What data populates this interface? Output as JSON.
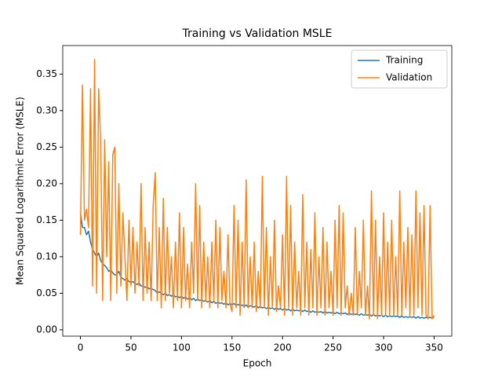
{
  "chart_data": {
    "type": "line",
    "title": "Training vs Validation MSLE",
    "x_label": "Epoch",
    "y_label": "Mean Squared Logarithmic Error (MSLE)",
    "x": [
      0,
      2,
      4,
      6,
      8,
      10,
      12,
      14,
      16,
      18,
      20,
      22,
      24,
      26,
      28,
      30,
      32,
      34,
      36,
      38,
      40,
      42,
      44,
      46,
      48,
      50,
      52,
      54,
      56,
      58,
      60,
      62,
      64,
      66,
      68,
      70,
      72,
      74,
      76,
      78,
      80,
      82,
      84,
      86,
      88,
      90,
      92,
      94,
      96,
      98,
      100,
      102,
      104,
      106,
      108,
      110,
      112,
      114,
      116,
      118,
      120,
      122,
      124,
      126,
      128,
      130,
      132,
      134,
      136,
      138,
      140,
      142,
      144,
      146,
      148,
      150,
      152,
      154,
      156,
      158,
      160,
      162,
      164,
      166,
      168,
      170,
      172,
      174,
      176,
      178,
      180,
      182,
      184,
      186,
      188,
      190,
      192,
      194,
      196,
      198,
      200,
      202,
      204,
      206,
      208,
      210,
      212,
      214,
      216,
      218,
      220,
      222,
      224,
      226,
      228,
      230,
      232,
      234,
      236,
      238,
      240,
      242,
      244,
      246,
      248,
      250,
      252,
      254,
      256,
      258,
      260,
      262,
      264,
      266,
      268,
      270,
      272,
      274,
      276,
      278,
      280,
      282,
      284,
      286,
      288,
      290,
      292,
      294,
      296,
      298,
      300,
      302,
      304,
      306,
      308,
      310,
      312,
      314,
      316,
      318,
      320,
      322,
      324,
      326,
      328,
      330,
      332,
      334,
      336,
      338,
      340,
      342,
      344,
      346,
      348,
      350
    ],
    "series": [
      {
        "name": "Training",
        "color": "#1f77b4",
        "values": [
          0.16,
          0.14,
          0.14,
          0.13,
          0.135,
          0.12,
          0.11,
          0.105,
          0.1,
          0.105,
          0.095,
          0.09,
          0.088,
          0.085,
          0.08,
          0.082,
          0.078,
          0.075,
          0.076,
          0.08,
          0.072,
          0.07,
          0.068,
          0.07,
          0.066,
          0.065,
          0.066,
          0.063,
          0.062,
          0.064,
          0.06,
          0.06,
          0.058,
          0.059,
          0.056,
          0.057,
          0.055,
          0.054,
          0.05,
          0.052,
          0.05,
          0.048,
          0.05,
          0.047,
          0.048,
          0.046,
          0.048,
          0.045,
          0.046,
          0.044,
          0.046,
          0.043,
          0.045,
          0.042,
          0.044,
          0.041,
          0.043,
          0.04,
          0.042,
          0.04,
          0.041,
          0.039,
          0.04,
          0.038,
          0.04,
          0.037,
          0.039,
          0.036,
          0.038,
          0.036,
          0.037,
          0.035,
          0.037,
          0.034,
          0.036,
          0.034,
          0.036,
          0.033,
          0.035,
          0.033,
          0.034,
          0.032,
          0.034,
          0.031,
          0.033,
          0.032,
          0.031,
          0.033,
          0.03,
          0.032,
          0.03,
          0.031,
          0.029,
          0.031,
          0.029,
          0.03,
          0.028,
          0.03,
          0.028,
          0.029,
          0.027,
          0.029,
          0.027,
          0.028,
          0.026,
          0.028,
          0.026,
          0.027,
          0.026,
          0.027,
          0.025,
          0.027,
          0.025,
          0.026,
          0.024,
          0.026,
          0.024,
          0.025,
          0.024,
          0.025,
          0.023,
          0.025,
          0.023,
          0.024,
          0.023,
          0.024,
          0.022,
          0.024,
          0.022,
          0.023,
          0.022,
          0.023,
          0.021,
          0.023,
          0.021,
          0.022,
          0.021,
          0.022,
          0.02,
          0.022,
          0.02,
          0.021,
          0.02,
          0.021,
          0.019,
          0.021,
          0.019,
          0.02,
          0.019,
          0.02,
          0.018,
          0.02,
          0.018,
          0.019,
          0.018,
          0.019,
          0.018,
          0.019,
          0.017,
          0.019,
          0.017,
          0.018,
          0.017,
          0.018,
          0.017,
          0.018,
          0.016,
          0.018,
          0.016,
          0.017,
          0.016,
          0.017,
          0.016,
          0.017,
          0.016,
          0.017
        ]
      },
      {
        "name": "Validation",
        "color": "#ff7f0e",
        "values": [
          0.13,
          0.335,
          0.15,
          0.165,
          0.14,
          0.33,
          0.06,
          0.37,
          0.05,
          0.33,
          0.26,
          0.04,
          0.26,
          0.1,
          0.23,
          0.04,
          0.24,
          0.25,
          0.05,
          0.2,
          0.06,
          0.16,
          0.1,
          0.04,
          0.15,
          0.06,
          0.14,
          0.05,
          0.12,
          0.06,
          0.2,
          0.04,
          0.14,
          0.05,
          0.12,
          0.04,
          0.17,
          0.215,
          0.04,
          0.14,
          0.03,
          0.18,
          0.04,
          0.14,
          0.05,
          0.1,
          0.03,
          0.12,
          0.04,
          0.16,
          0.03,
          0.14,
          0.04,
          0.09,
          0.03,
          0.12,
          0.05,
          0.2,
          0.04,
          0.17,
          0.03,
          0.12,
          0.04,
          0.1,
          0.03,
          0.12,
          0.04,
          0.15,
          0.03,
          0.14,
          0.04,
          0.08,
          0.03,
          0.13,
          0.035,
          0.025,
          0.17,
          0.03,
          0.15,
          0.02,
          0.12,
          0.03,
          0.205,
          0.03,
          0.1,
          0.03,
          0.12,
          0.025,
          0.08,
          0.03,
          0.21,
          0.03,
          0.14,
          0.02,
          0.1,
          0.03,
          0.15,
          0.025,
          0.06,
          0.03,
          0.13,
          0.02,
          0.21,
          0.03,
          0.17,
          0.02,
          0.12,
          0.03,
          0.08,
          0.02,
          0.185,
          0.03,
          0.12,
          0.02,
          0.11,
          0.03,
          0.16,
          0.02,
          0.1,
          0.03,
          0.14,
          0.02,
          0.12,
          0.03,
          0.08,
          0.02,
          0.15,
          0.03,
          0.17,
          0.02,
          0.16,
          0.03,
          0.06,
          0.02,
          0.05,
          0.02,
          0.14,
          0.02,
          0.08,
          0.03,
          0.15,
          0.02,
          0.06,
          0.015,
          0.19,
          0.02,
          0.15,
          0.015,
          0.1,
          0.02,
          0.16,
          0.02,
          0.12,
          0.02,
          0.15,
          0.02,
          0.1,
          0.02,
          0.19,
          0.02,
          0.12,
          0.03,
          0.14,
          0.02,
          0.13,
          0.02,
          0.19,
          0.03,
          0.16,
          0.02,
          0.17,
          0.02,
          0.015,
          0.17,
          0.015,
          0.02
        ]
      }
    ],
    "xlim": [
      -17.5,
      367.5
    ],
    "ylim": [
      -0.0087,
      0.389
    ],
    "xticks": [
      0,
      50,
      100,
      150,
      200,
      250,
      300,
      350
    ],
    "yticks": [
      {
        "value": 0,
        "label": "0.00"
      },
      {
        "value": 0.05,
        "label": "0.05"
      },
      {
        "value": 0.1,
        "label": "0.10"
      },
      {
        "value": 0.15,
        "label": "0.15"
      },
      {
        "value": 0.2,
        "label": "0.20"
      },
      {
        "value": 0.25,
        "label": "0.25"
      },
      {
        "value": 0.3,
        "label": "0.30"
      },
      {
        "value": 0.35,
        "label": "0.35"
      }
    ],
    "legend": "upper right"
  }
}
